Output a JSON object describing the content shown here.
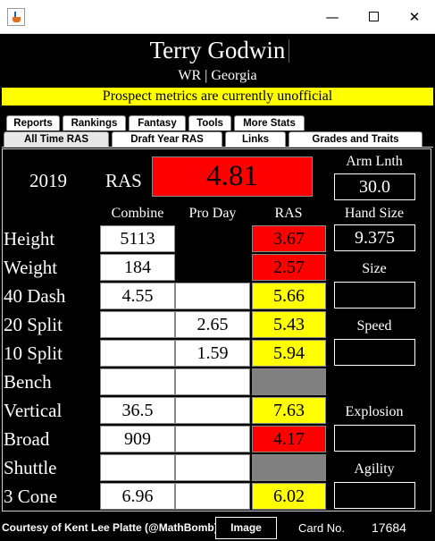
{
  "window": {
    "minimize_glyph": "—",
    "close_glyph": "✕"
  },
  "header": {
    "name": "Terry Godwin",
    "subtitle": "WR | Georgia",
    "banner": "Prospect metrics are currently unofficial"
  },
  "tabs_top": [
    "Reports",
    "Rankings",
    "Fantasy",
    "Tools",
    "More Stats"
  ],
  "tabs_bottom": [
    "All Time RAS",
    "Draft Year RAS",
    "Links",
    "Grades and Traits"
  ],
  "summary": {
    "year": "2019",
    "ras_label": "RAS",
    "ras_score": "4.81",
    "arm_length_label": "Arm Lnth",
    "arm_length": "30.0",
    "hand_size_label": "Hand Size",
    "hand_size": "9.375"
  },
  "columns": {
    "combine": "Combine",
    "pro_day": "Pro Day",
    "ras": "RAS"
  },
  "rows": [
    {
      "label": "Height",
      "combine": "5113",
      "pro_day": "",
      "ras": "3.67"
    },
    {
      "label": "Weight",
      "combine": "184",
      "pro_day": "",
      "ras": "2.57"
    },
    {
      "label": "40 Dash",
      "combine": "4.55",
      "pro_day": "",
      "ras": "5.66"
    },
    {
      "label": "20 Split",
      "combine": "",
      "pro_day": "2.65",
      "ras": "5.43"
    },
    {
      "label": "10 Split",
      "combine": "",
      "pro_day": "1.59",
      "ras": "5.94"
    },
    {
      "label": "Bench",
      "combine": "",
      "pro_day": "",
      "ras": ""
    },
    {
      "label": "Vertical",
      "combine": "36.5",
      "pro_day": "",
      "ras": "7.63"
    },
    {
      "label": "Broad",
      "combine": "909",
      "pro_day": "",
      "ras": "4.17"
    },
    {
      "label": "Shuttle",
      "combine": "",
      "pro_day": "",
      "ras": ""
    },
    {
      "label": "3 Cone",
      "combine": "6.96",
      "pro_day": "",
      "ras": "6.02"
    }
  ],
  "grades": {
    "size_label": "Size",
    "size": "",
    "speed_label": "Speed",
    "speed": "",
    "explosion_label": "Explosion",
    "explosion": "",
    "agility_label": "Agility",
    "agility": ""
  },
  "colors": {
    "ras_red": "#ff0000",
    "ras_yellow": "#ffff00",
    "ras_missing": "#808080",
    "banner": "#ffff00"
  },
  "footer": {
    "courtesy": "Courtesy of Kent Lee Platte (@MathBomb)",
    "image_button": "Image",
    "card_label": "Card No.",
    "card_number": "17684"
  }
}
